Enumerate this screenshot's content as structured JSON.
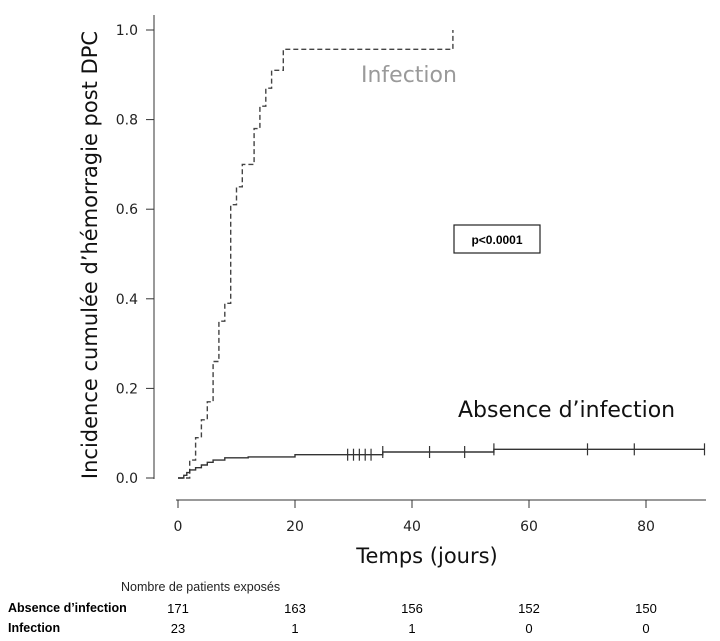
{
  "chart_data": {
    "type": "line",
    "step": true,
    "xlabel": "Temps (jours)",
    "ylabel": "Incidence cumulée d’hémorragie post DPC",
    "xlim": [
      0,
      90
    ],
    "ylim": [
      0,
      1.0
    ],
    "x_ticks": [
      0,
      20,
      40,
      60,
      80
    ],
    "y_ticks": [
      "0.0",
      "0.2",
      "0.4",
      "0.6",
      "0.8",
      "1.0"
    ],
    "annotation": "p<0.0001",
    "series": [
      {
        "name": "Infection",
        "style": "dashed",
        "color": "#444444",
        "label_color": "#9a9a9a",
        "points": [
          [
            0,
            0
          ],
          [
            2,
            0
          ],
          [
            2,
            0.04
          ],
          [
            3,
            0.04
          ],
          [
            3,
            0.09
          ],
          [
            4,
            0.09
          ],
          [
            4,
            0.13
          ],
          [
            5,
            0.13
          ],
          [
            5,
            0.17
          ],
          [
            6,
            0.17
          ],
          [
            6,
            0.26
          ],
          [
            7,
            0.26
          ],
          [
            7,
            0.35
          ],
          [
            8,
            0.35
          ],
          [
            8,
            0.39
          ],
          [
            9,
            0.39
          ],
          [
            9,
            0.61
          ],
          [
            10,
            0.61
          ],
          [
            10,
            0.65
          ],
          [
            11,
            0.65
          ],
          [
            11,
            0.7
          ],
          [
            13,
            0.7
          ],
          [
            13,
            0.78
          ],
          [
            14,
            0.78
          ],
          [
            14,
            0.83
          ],
          [
            15,
            0.83
          ],
          [
            15,
            0.87
          ],
          [
            16,
            0.87
          ],
          [
            16,
            0.91
          ],
          [
            18,
            0.91
          ],
          [
            18,
            0.957
          ],
          [
            47,
            0.957
          ],
          [
            47,
            1.0
          ]
        ]
      },
      {
        "name": "Absence d’infection",
        "style": "solid",
        "color": "#333333",
        "label_color": "#111111",
        "points": [
          [
            0,
            0
          ],
          [
            1,
            0
          ],
          [
            1,
            0.006
          ],
          [
            1.5,
            0.006
          ],
          [
            1.5,
            0.012
          ],
          [
            2,
            0.012
          ],
          [
            2,
            0.018
          ],
          [
            3,
            0.018
          ],
          [
            3,
            0.023
          ],
          [
            4,
            0.023
          ],
          [
            4,
            0.029
          ],
          [
            5,
            0.029
          ],
          [
            5,
            0.035
          ],
          [
            6,
            0.035
          ],
          [
            6,
            0.04
          ],
          [
            8,
            0.04
          ],
          [
            8,
            0.045
          ],
          [
            12,
            0.045
          ],
          [
            12,
            0.047
          ],
          [
            20,
            0.047
          ],
          [
            20,
            0.052
          ],
          [
            35,
            0.052
          ],
          [
            35,
            0.058
          ],
          [
            54,
            0.058
          ],
          [
            54,
            0.064
          ],
          [
            90,
            0.064
          ]
        ],
        "censored": [
          29,
          30,
          31,
          32,
          33,
          35,
          43,
          49,
          54,
          70,
          78,
          90
        ]
      }
    ],
    "risk_table": {
      "title": "Nombre de patients exposés",
      "times": [
        0,
        20,
        40,
        60,
        80
      ],
      "rows": [
        {
          "label": "Absence d’infection",
          "values": [
            "171",
            "163",
            "156",
            "152",
            "150"
          ]
        },
        {
          "label": "Infection",
          "values": [
            "23",
            "1",
            "1",
            "0",
            "0"
          ]
        }
      ]
    }
  }
}
